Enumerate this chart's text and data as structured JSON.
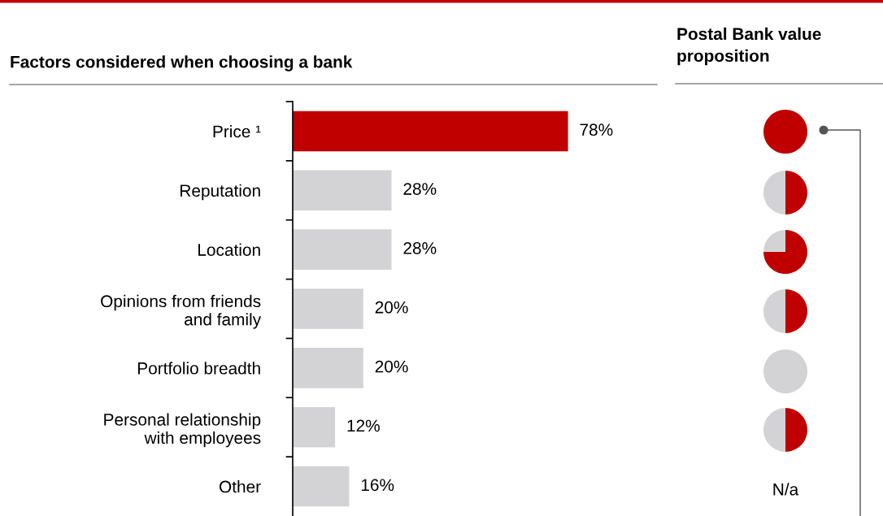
{
  "chart_data": [
    {
      "type": "bar",
      "orientation": "horizontal",
      "title": "Factors considered when choosing a bank",
      "categories": [
        "Price ¹",
        "Reputation",
        "Location",
        "Opinions from friends\nand family",
        "Portfolio breadth",
        "Personal relationship\nwith employees",
        "Other"
      ],
      "values": [
        78,
        28,
        28,
        20,
        20,
        12,
        16
      ],
      "colors": [
        "#c00000",
        "#d3d3d5",
        "#d3d3d5",
        "#d3d3d5",
        "#d3d3d5",
        "#d3d3d5",
        "#d3d3d5"
      ],
      "data_labels": true,
      "value_labels": [
        "78%",
        "28%",
        "28%",
        "20%",
        "20%",
        "12%",
        "16%"
      ],
      "tick_labels": "y"
    },
    {
      "type": "other",
      "title": "Postal Bank value\nproposition",
      "annotations": [
        "N/a"
      ]
    },
    {
      "type": "pie",
      "categories": [
        null
      ],
      "values": [
        100
      ],
      "colors": [
        "#c00000"
      ]
    },
    {
      "type": "pie",
      "categories": [
        null,
        null
      ],
      "values": [
        50,
        50
      ],
      "colors": [
        "#c00000",
        "#d3d3d5"
      ]
    },
    {
      "type": "pie",
      "categories": [
        null,
        null
      ],
      "values": [
        75,
        25
      ],
      "colors": [
        "#c00000",
        "#d3d3d5"
      ]
    },
    {
      "type": "pie",
      "categories": [
        null,
        null
      ],
      "values": [
        50,
        50
      ],
      "colors": [
        "#c00000",
        "#d3d3d5"
      ]
    },
    {
      "type": "pie",
      "categories": [
        null
      ],
      "values": [
        100
      ],
      "colors": [
        "#d3d3d5"
      ]
    },
    {
      "type": "pie",
      "categories": [
        null,
        null
      ],
      "values": [
        50,
        50
      ],
      "colors": [
        "#c00000",
        "#d3d3d5"
      ]
    }
  ]
}
